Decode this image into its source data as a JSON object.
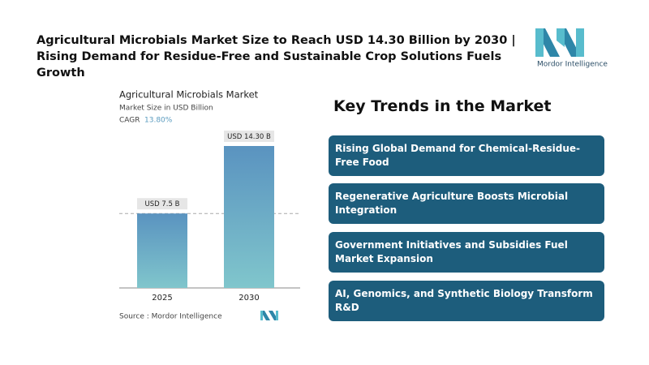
{
  "header": {
    "title": "Agricultural Microbials Market Size to Reach USD 14.30 Billion by 2030 | Rising Demand for Residue-Free and Sustainable Crop Solutions Fuels Growth",
    "logo_text": "Mordor Intelligence"
  },
  "chart_data": {
    "type": "bar",
    "title": "Agricultural Microbials Market",
    "subtitle": "Market Size in USD Billion",
    "cagr_label": "CAGR",
    "cagr": "13.80%",
    "categories": [
      "2025",
      "2030"
    ],
    "values": [
      7.5,
      14.3
    ],
    "value_labels": [
      "USD 7.5 B",
      "USD 14.30 B"
    ],
    "source": "Source : Mordor Intelligence"
  },
  "trends": {
    "title": "Key Trends in the Market",
    "items": [
      "Rising Global Demand for Chemical-Residue-Free Food",
      "Regenerative Agriculture Boosts Microbial Integration",
      "Government Initiatives and Subsidies Fuel Market Expansion",
      "AI, Genomics, and Synthetic Biology Transform R&D"
    ]
  }
}
